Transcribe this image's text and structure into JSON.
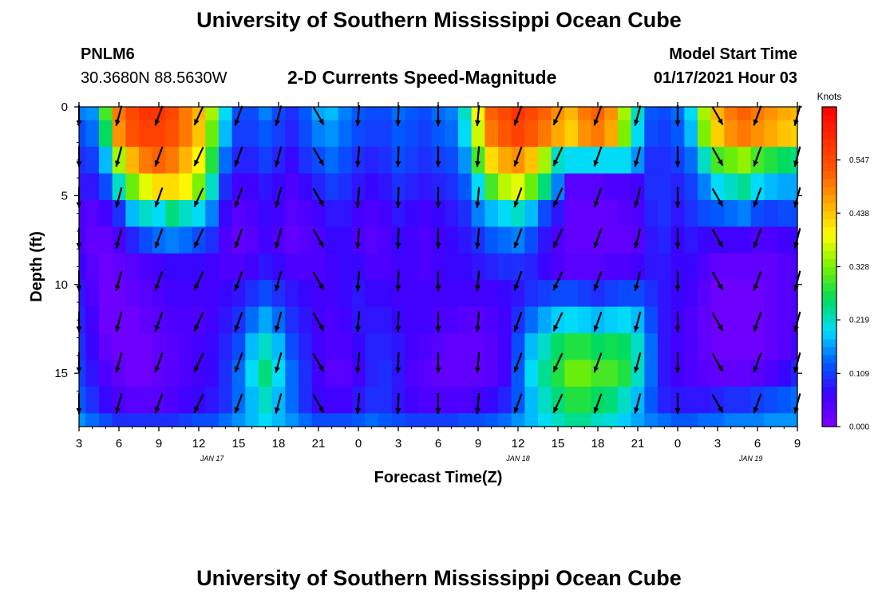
{
  "header": {
    "title": "University of Southern Mississippi Ocean Cube",
    "station_id": "PNLM6",
    "station_coords": "30.3680N 88.5630W",
    "plot_title": "2-D Currents Speed-Magnitude",
    "model_start_label": "Model Start Time",
    "model_start_value": "01/17/2021 Hour 03"
  },
  "footer": {
    "title": "University of Southern Mississippi Ocean Cube"
  },
  "chart_data": {
    "type": "heatmap",
    "title": "2-D Currents Speed-Magnitude",
    "xlabel": "Forecast Time(Z)",
    "ylabel": "Depth (ft)",
    "x_tick_labels": [
      "3",
      "6",
      "9",
      "12",
      "15",
      "18",
      "21",
      "0",
      "3",
      "6",
      "9",
      "12",
      "15",
      "18",
      "21",
      "0",
      "3",
      "6",
      "9"
    ],
    "x_ticks_hours": [
      0,
      3,
      6,
      9,
      12,
      15,
      18,
      21,
      24,
      27,
      30,
      33,
      36,
      39,
      42,
      45,
      48,
      51,
      54
    ],
    "x_range_hours": [
      0,
      54
    ],
    "date_labels": [
      {
        "label": "JAN 17",
        "hour": 10
      },
      {
        "label": "JAN 18",
        "hour": 33
      },
      {
        "label": "JAN 19",
        "hour": 50.5
      }
    ],
    "y_ticks": [
      0,
      5,
      10,
      15
    ],
    "y_range": [
      0,
      18
    ],
    "colorbar": {
      "label": "Knots",
      "tick_labels": [
        "0.000",
        "0.109",
        "0.219",
        "0.328",
        "0.438",
        "0.547"
      ],
      "range": [
        0,
        0.656
      ]
    },
    "grid_hours": [
      0,
      1,
      2,
      3,
      4,
      5,
      6,
      7,
      8,
      9,
      10,
      11,
      12,
      13,
      14,
      15,
      16,
      17,
      18,
      19,
      20,
      21,
      22,
      23,
      24,
      25,
      26,
      27,
      28,
      29,
      30,
      31,
      32,
      33,
      34,
      35,
      36,
      37,
      38,
      39,
      40,
      41,
      42,
      43,
      44,
      45,
      46,
      47,
      48,
      49,
      50,
      51,
      52,
      53,
      54
    ],
    "grid_depths": [
      0,
      1.5,
      3,
      4.5,
      6,
      7.5,
      9,
      10.5,
      12,
      13.5,
      15,
      16.5,
      18
    ],
    "speed": [
      [
        0.15,
        0.16,
        0.3,
        0.5,
        0.55,
        0.58,
        0.58,
        0.55,
        0.5,
        0.45,
        0.35,
        0.2,
        0.12,
        0.12,
        0.15,
        0.12,
        0.1,
        0.13,
        0.17,
        0.18,
        0.15,
        0.13,
        0.12,
        0.12,
        0.14,
        0.13,
        0.12,
        0.14,
        0.15,
        0.22,
        0.4,
        0.52,
        0.55,
        0.58,
        0.55,
        0.52,
        0.48,
        0.45,
        0.5,
        0.52,
        0.48,
        0.35,
        0.22,
        0.13,
        0.12,
        0.14,
        0.2,
        0.35,
        0.45,
        0.5,
        0.52,
        0.5,
        0.48,
        0.46,
        0.45
      ],
      [
        0.12,
        0.14,
        0.26,
        0.48,
        0.54,
        0.56,
        0.56,
        0.54,
        0.5,
        0.44,
        0.32,
        0.18,
        0.11,
        0.11,
        0.13,
        0.11,
        0.09,
        0.12,
        0.15,
        0.16,
        0.14,
        0.12,
        0.11,
        0.11,
        0.13,
        0.12,
        0.11,
        0.13,
        0.14,
        0.2,
        0.37,
        0.5,
        0.53,
        0.56,
        0.53,
        0.5,
        0.46,
        0.43,
        0.48,
        0.5,
        0.46,
        0.33,
        0.2,
        0.12,
        0.11,
        0.13,
        0.18,
        0.33,
        0.43,
        0.48,
        0.5,
        0.48,
        0.46,
        0.44,
        0.43
      ],
      [
        0.1,
        0.11,
        0.18,
        0.35,
        0.45,
        0.5,
        0.52,
        0.5,
        0.45,
        0.4,
        0.28,
        0.14,
        0.09,
        0.09,
        0.11,
        0.09,
        0.07,
        0.1,
        0.12,
        0.14,
        0.12,
        0.1,
        0.09,
        0.1,
        0.12,
        0.11,
        0.1,
        0.11,
        0.12,
        0.16,
        0.3,
        0.42,
        0.46,
        0.48,
        0.44,
        0.35,
        0.22,
        0.2,
        0.2,
        0.2,
        0.2,
        0.2,
        0.16,
        0.1,
        0.1,
        0.11,
        0.14,
        0.22,
        0.3,
        0.32,
        0.34,
        0.3,
        0.28,
        0.26,
        0.25
      ],
      [
        0.08,
        0.08,
        0.12,
        0.22,
        0.32,
        0.38,
        0.42,
        0.42,
        0.4,
        0.33,
        0.22,
        0.1,
        0.06,
        0.06,
        0.08,
        0.07,
        0.05,
        0.07,
        0.09,
        0.11,
        0.1,
        0.08,
        0.07,
        0.08,
        0.1,
        0.09,
        0.08,
        0.09,
        0.1,
        0.13,
        0.2,
        0.3,
        0.36,
        0.38,
        0.32,
        0.25,
        0.15,
        0.04,
        0.04,
        0.04,
        0.05,
        0.05,
        0.06,
        0.1,
        0.1,
        0.09,
        0.11,
        0.15,
        0.2,
        0.22,
        0.24,
        0.2,
        0.18,
        0.17,
        0.17
      ],
      [
        0.05,
        0.04,
        0.06,
        0.1,
        0.18,
        0.22,
        0.2,
        0.25,
        0.22,
        0.2,
        0.15,
        0.07,
        0.04,
        0.05,
        0.07,
        0.06,
        0.04,
        0.05,
        0.06,
        0.08,
        0.08,
        0.06,
        0.05,
        0.06,
        0.08,
        0.07,
        0.06,
        0.07,
        0.08,
        0.1,
        0.15,
        0.18,
        0.2,
        0.22,
        0.18,
        0.12,
        0.08,
        0.03,
        0.03,
        0.03,
        0.03,
        0.04,
        0.05,
        0.09,
        0.1,
        0.08,
        0.1,
        0.12,
        0.13,
        0.14,
        0.15,
        0.12,
        0.11,
        0.12,
        0.12
      ],
      [
        0.05,
        0.03,
        0.03,
        0.05,
        0.09,
        0.12,
        0.14,
        0.15,
        0.14,
        0.12,
        0.1,
        0.05,
        0.03,
        0.04,
        0.06,
        0.05,
        0.03,
        0.04,
        0.05,
        0.07,
        0.07,
        0.05,
        0.04,
        0.05,
        0.07,
        0.06,
        0.05,
        0.06,
        0.07,
        0.08,
        0.1,
        0.13,
        0.14,
        0.15,
        0.12,
        0.08,
        0.05,
        0.03,
        0.03,
        0.03,
        0.03,
        0.03,
        0.04,
        0.08,
        0.09,
        0.07,
        0.08,
        0.07,
        0.06,
        0.06,
        0.06,
        0.05,
        0.05,
        0.06,
        0.07
      ],
      [
        0.07,
        0.04,
        0.02,
        0.03,
        0.04,
        0.05,
        0.06,
        0.07,
        0.07,
        0.07,
        0.06,
        0.05,
        0.05,
        0.06,
        0.08,
        0.07,
        0.05,
        0.05,
        0.05,
        0.06,
        0.07,
        0.07,
        0.05,
        0.05,
        0.06,
        0.06,
        0.05,
        0.06,
        0.07,
        0.07,
        0.08,
        0.09,
        0.1,
        0.1,
        0.09,
        0.07,
        0.05,
        0.04,
        0.04,
        0.04,
        0.05,
        0.05,
        0.06,
        0.08,
        0.08,
        0.07,
        0.07,
        0.05,
        0.03,
        0.03,
        0.03,
        0.03,
        0.03,
        0.04,
        0.05
      ],
      [
        0.08,
        0.05,
        0.02,
        0.02,
        0.03,
        0.04,
        0.05,
        0.06,
        0.06,
        0.06,
        0.06,
        0.07,
        0.08,
        0.1,
        0.12,
        0.1,
        0.08,
        0.07,
        0.06,
        0.06,
        0.07,
        0.08,
        0.07,
        0.07,
        0.06,
        0.06,
        0.06,
        0.06,
        0.06,
        0.06,
        0.06,
        0.06,
        0.07,
        0.08,
        0.1,
        0.11,
        0.12,
        0.12,
        0.11,
        0.1,
        0.11,
        0.12,
        0.12,
        0.1,
        0.08,
        0.07,
        0.06,
        0.04,
        0.02,
        0.02,
        0.02,
        0.02,
        0.03,
        0.04,
        0.05
      ],
      [
        0.09,
        0.06,
        0.02,
        0.02,
        0.02,
        0.03,
        0.04,
        0.05,
        0.05,
        0.05,
        0.06,
        0.08,
        0.1,
        0.14,
        0.17,
        0.14,
        0.1,
        0.08,
        0.06,
        0.05,
        0.06,
        0.08,
        0.08,
        0.08,
        0.07,
        0.06,
        0.06,
        0.05,
        0.05,
        0.04,
        0.04,
        0.05,
        0.06,
        0.1,
        0.14,
        0.17,
        0.19,
        0.2,
        0.19,
        0.18,
        0.19,
        0.2,
        0.18,
        0.12,
        0.08,
        0.06,
        0.05,
        0.03,
        0.02,
        0.02,
        0.02,
        0.02,
        0.03,
        0.04,
        0.05
      ],
      [
        0.1,
        0.07,
        0.03,
        0.02,
        0.02,
        0.02,
        0.03,
        0.04,
        0.05,
        0.06,
        0.07,
        0.09,
        0.12,
        0.18,
        0.22,
        0.18,
        0.12,
        0.09,
        0.06,
        0.05,
        0.05,
        0.07,
        0.09,
        0.09,
        0.08,
        0.06,
        0.05,
        0.04,
        0.03,
        0.03,
        0.03,
        0.04,
        0.06,
        0.12,
        0.18,
        0.22,
        0.26,
        0.28,
        0.28,
        0.26,
        0.27,
        0.26,
        0.22,
        0.14,
        0.08,
        0.06,
        0.05,
        0.03,
        0.02,
        0.02,
        0.02,
        0.02,
        0.03,
        0.04,
        0.06
      ],
      [
        0.11,
        0.08,
        0.05,
        0.03,
        0.02,
        0.02,
        0.03,
        0.04,
        0.05,
        0.06,
        0.07,
        0.1,
        0.14,
        0.2,
        0.25,
        0.2,
        0.14,
        0.1,
        0.06,
        0.04,
        0.04,
        0.06,
        0.09,
        0.1,
        0.08,
        0.05,
        0.04,
        0.03,
        0.03,
        0.03,
        0.03,
        0.04,
        0.06,
        0.13,
        0.2,
        0.24,
        0.28,
        0.32,
        0.32,
        0.3,
        0.3,
        0.28,
        0.22,
        0.14,
        0.08,
        0.06,
        0.05,
        0.04,
        0.03,
        0.03,
        0.03,
        0.04,
        0.05,
        0.07,
        0.09
      ],
      [
        0.13,
        0.1,
        0.07,
        0.05,
        0.04,
        0.04,
        0.04,
        0.05,
        0.06,
        0.07,
        0.08,
        0.1,
        0.14,
        0.18,
        0.22,
        0.18,
        0.14,
        0.1,
        0.07,
        0.06,
        0.06,
        0.08,
        0.1,
        0.1,
        0.08,
        0.06,
        0.05,
        0.05,
        0.05,
        0.05,
        0.06,
        0.07,
        0.09,
        0.13,
        0.18,
        0.22,
        0.25,
        0.28,
        0.28,
        0.26,
        0.25,
        0.22,
        0.18,
        0.13,
        0.09,
        0.08,
        0.08,
        0.08,
        0.09,
        0.1,
        0.1,
        0.11,
        0.12,
        0.13,
        0.14
      ],
      [
        0.16,
        0.14,
        0.12,
        0.1,
        0.1,
        0.1,
        0.1,
        0.1,
        0.11,
        0.12,
        0.12,
        0.14,
        0.16,
        0.18,
        0.2,
        0.18,
        0.16,
        0.14,
        0.12,
        0.12,
        0.12,
        0.13,
        0.14,
        0.13,
        0.12,
        0.11,
        0.11,
        0.11,
        0.11,
        0.12,
        0.12,
        0.13,
        0.14,
        0.16,
        0.18,
        0.2,
        0.22,
        0.24,
        0.24,
        0.22,
        0.21,
        0.19,
        0.17,
        0.15,
        0.14,
        0.13,
        0.13,
        0.14,
        0.14,
        0.15,
        0.15,
        0.15,
        0.16,
        0.16,
        0.16
      ]
    ],
    "arrow_stations": [
      {
        "hour": 0,
        "angle": 180
      },
      {
        "hour": 3,
        "angle": 195
      },
      {
        "hour": 6,
        "angle": 200
      },
      {
        "hour": 9,
        "angle": 205
      },
      {
        "hour": 12,
        "angle": 200
      },
      {
        "hour": 15,
        "angle": 195
      },
      {
        "hour": 18,
        "angle": 150
      },
      {
        "hour": 21,
        "angle": 185
      },
      {
        "hour": 24,
        "angle": 182
      },
      {
        "hour": 27,
        "angle": 180
      },
      {
        "hour": 30,
        "angle": 185
      },
      {
        "hour": 33,
        "angle": 200
      },
      {
        "hour": 36,
        "angle": 205
      },
      {
        "hour": 39,
        "angle": 200
      },
      {
        "hour": 42,
        "angle": 195
      },
      {
        "hour": 45,
        "angle": 180
      },
      {
        "hour": 48,
        "angle": 150
      },
      {
        "hour": 51,
        "angle": 200
      },
      {
        "hour": 54,
        "angle": 195
      }
    ],
    "arrow_depths": [
      0.5,
      2.8,
      5.1,
      7.4,
      9.8,
      12.1,
      14.4,
      16.7
    ]
  }
}
